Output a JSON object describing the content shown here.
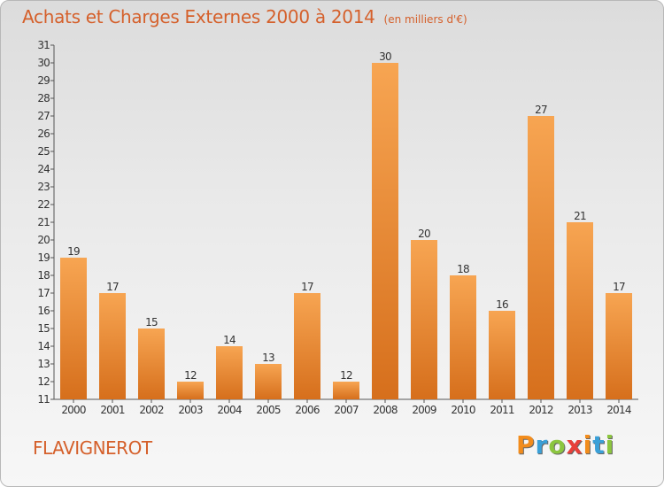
{
  "header": {
    "title": "Achats et Charges Externes 2000 à 2014",
    "unit": "(en milliers d'€)"
  },
  "commune": "FLAVIGNEROT",
  "logo": {
    "letters": [
      "P",
      "r",
      "o",
      "x",
      "i",
      "t",
      "i"
    ],
    "colors": [
      "#f28c1c",
      "#3aa0d8",
      "#8cc63f",
      "#e8403a",
      "#f28c1c",
      "#3aa0d8",
      "#8cc63f"
    ]
  },
  "chart_data": {
    "type": "bar",
    "categories": [
      "2000",
      "2001",
      "2002",
      "2003",
      "2004",
      "2005",
      "2006",
      "2007",
      "2008",
      "2009",
      "2010",
      "2011",
      "2012",
      "2013",
      "2014"
    ],
    "values": [
      19,
      17,
      15,
      12,
      14,
      13,
      17,
      12,
      30,
      20,
      18,
      16,
      27,
      21,
      17
    ],
    "title": "Achats et Charges Externes 2000 à 2014",
    "xlabel": "",
    "ylabel": "",
    "ylim": [
      11,
      31
    ],
    "yticks": [
      11,
      12,
      13,
      14,
      15,
      16,
      17,
      18,
      19,
      20,
      21,
      22,
      23,
      24,
      25,
      26,
      27,
      28,
      29,
      30,
      31
    ],
    "grid": false,
    "bar_color": "#f0923a",
    "legend": "none"
  }
}
